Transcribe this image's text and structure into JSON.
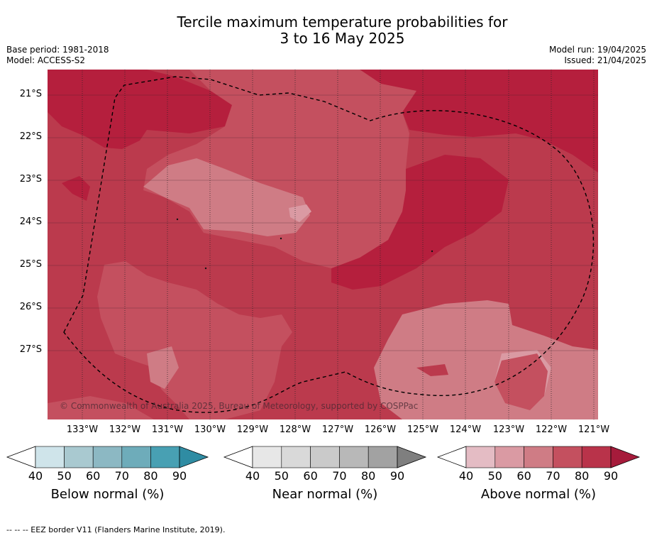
{
  "title_line1": "Tercile maximum temperature probabilities for",
  "title_line2": "3 to 16 May 2025",
  "base_period": "Base period: 1981-2018",
  "model": "Model: ACCESS-S2",
  "model_run": "Model run: 19/04/2025",
  "issued": "Issued: 21/04/2025",
  "copyright": "© Commonwealth of Australia 2025, Bureau of Meteorology, supported by COSPPac",
  "footnote": "--  --  -- EEZ border V11 (Flanders Marine Institute, 2019).",
  "lat_labels": [
    "21°S",
    "22°S",
    "23°S",
    "24°S",
    "25°S",
    "26°S",
    "27°S"
  ],
  "lon_labels": [
    "133°W",
    "132°W",
    "131°W",
    "130°W",
    "129°W",
    "128°W",
    "127°W",
    "126°W",
    "125°W",
    "124°W",
    "123°W",
    "122°W",
    "121°W"
  ],
  "colorbars": [
    {
      "label": "Below normal (%)",
      "ticks": [
        "40",
        "50",
        "60",
        "70",
        "80",
        "90"
      ],
      "colors": [
        "#cfe4ea",
        "#a9c9d0",
        "#8cb8c3",
        "#6eacba",
        "#48a0b3",
        "#2f8ca3"
      ],
      "under_color": "#ffffff"
    },
    {
      "label": "Near normal (%)",
      "ticks": [
        "40",
        "50",
        "60",
        "70",
        "80",
        "90"
      ],
      "colors": [
        "#e7e7e7",
        "#d9d9d9",
        "#cacaca",
        "#b8b8b8",
        "#a2a2a2",
        "#7f7f7f"
      ],
      "under_color": "#ffffff"
    },
    {
      "label": "Above normal (%)",
      "ticks": [
        "40",
        "50",
        "60",
        "70",
        "80",
        "90"
      ],
      "colors": [
        "#e4bcc4",
        "#da9aa3",
        "#cf7c85",
        "#c4505f",
        "#b9334a",
        "#a61b3b"
      ],
      "under_color": "#ffffff"
    }
  ],
  "map_colors": {
    "p60": "#cf7c85",
    "p70": "#c4505f",
    "p80": "#bb3a4d",
    "p90": "#b51f3d",
    "p50": "#da9aa3"
  }
}
